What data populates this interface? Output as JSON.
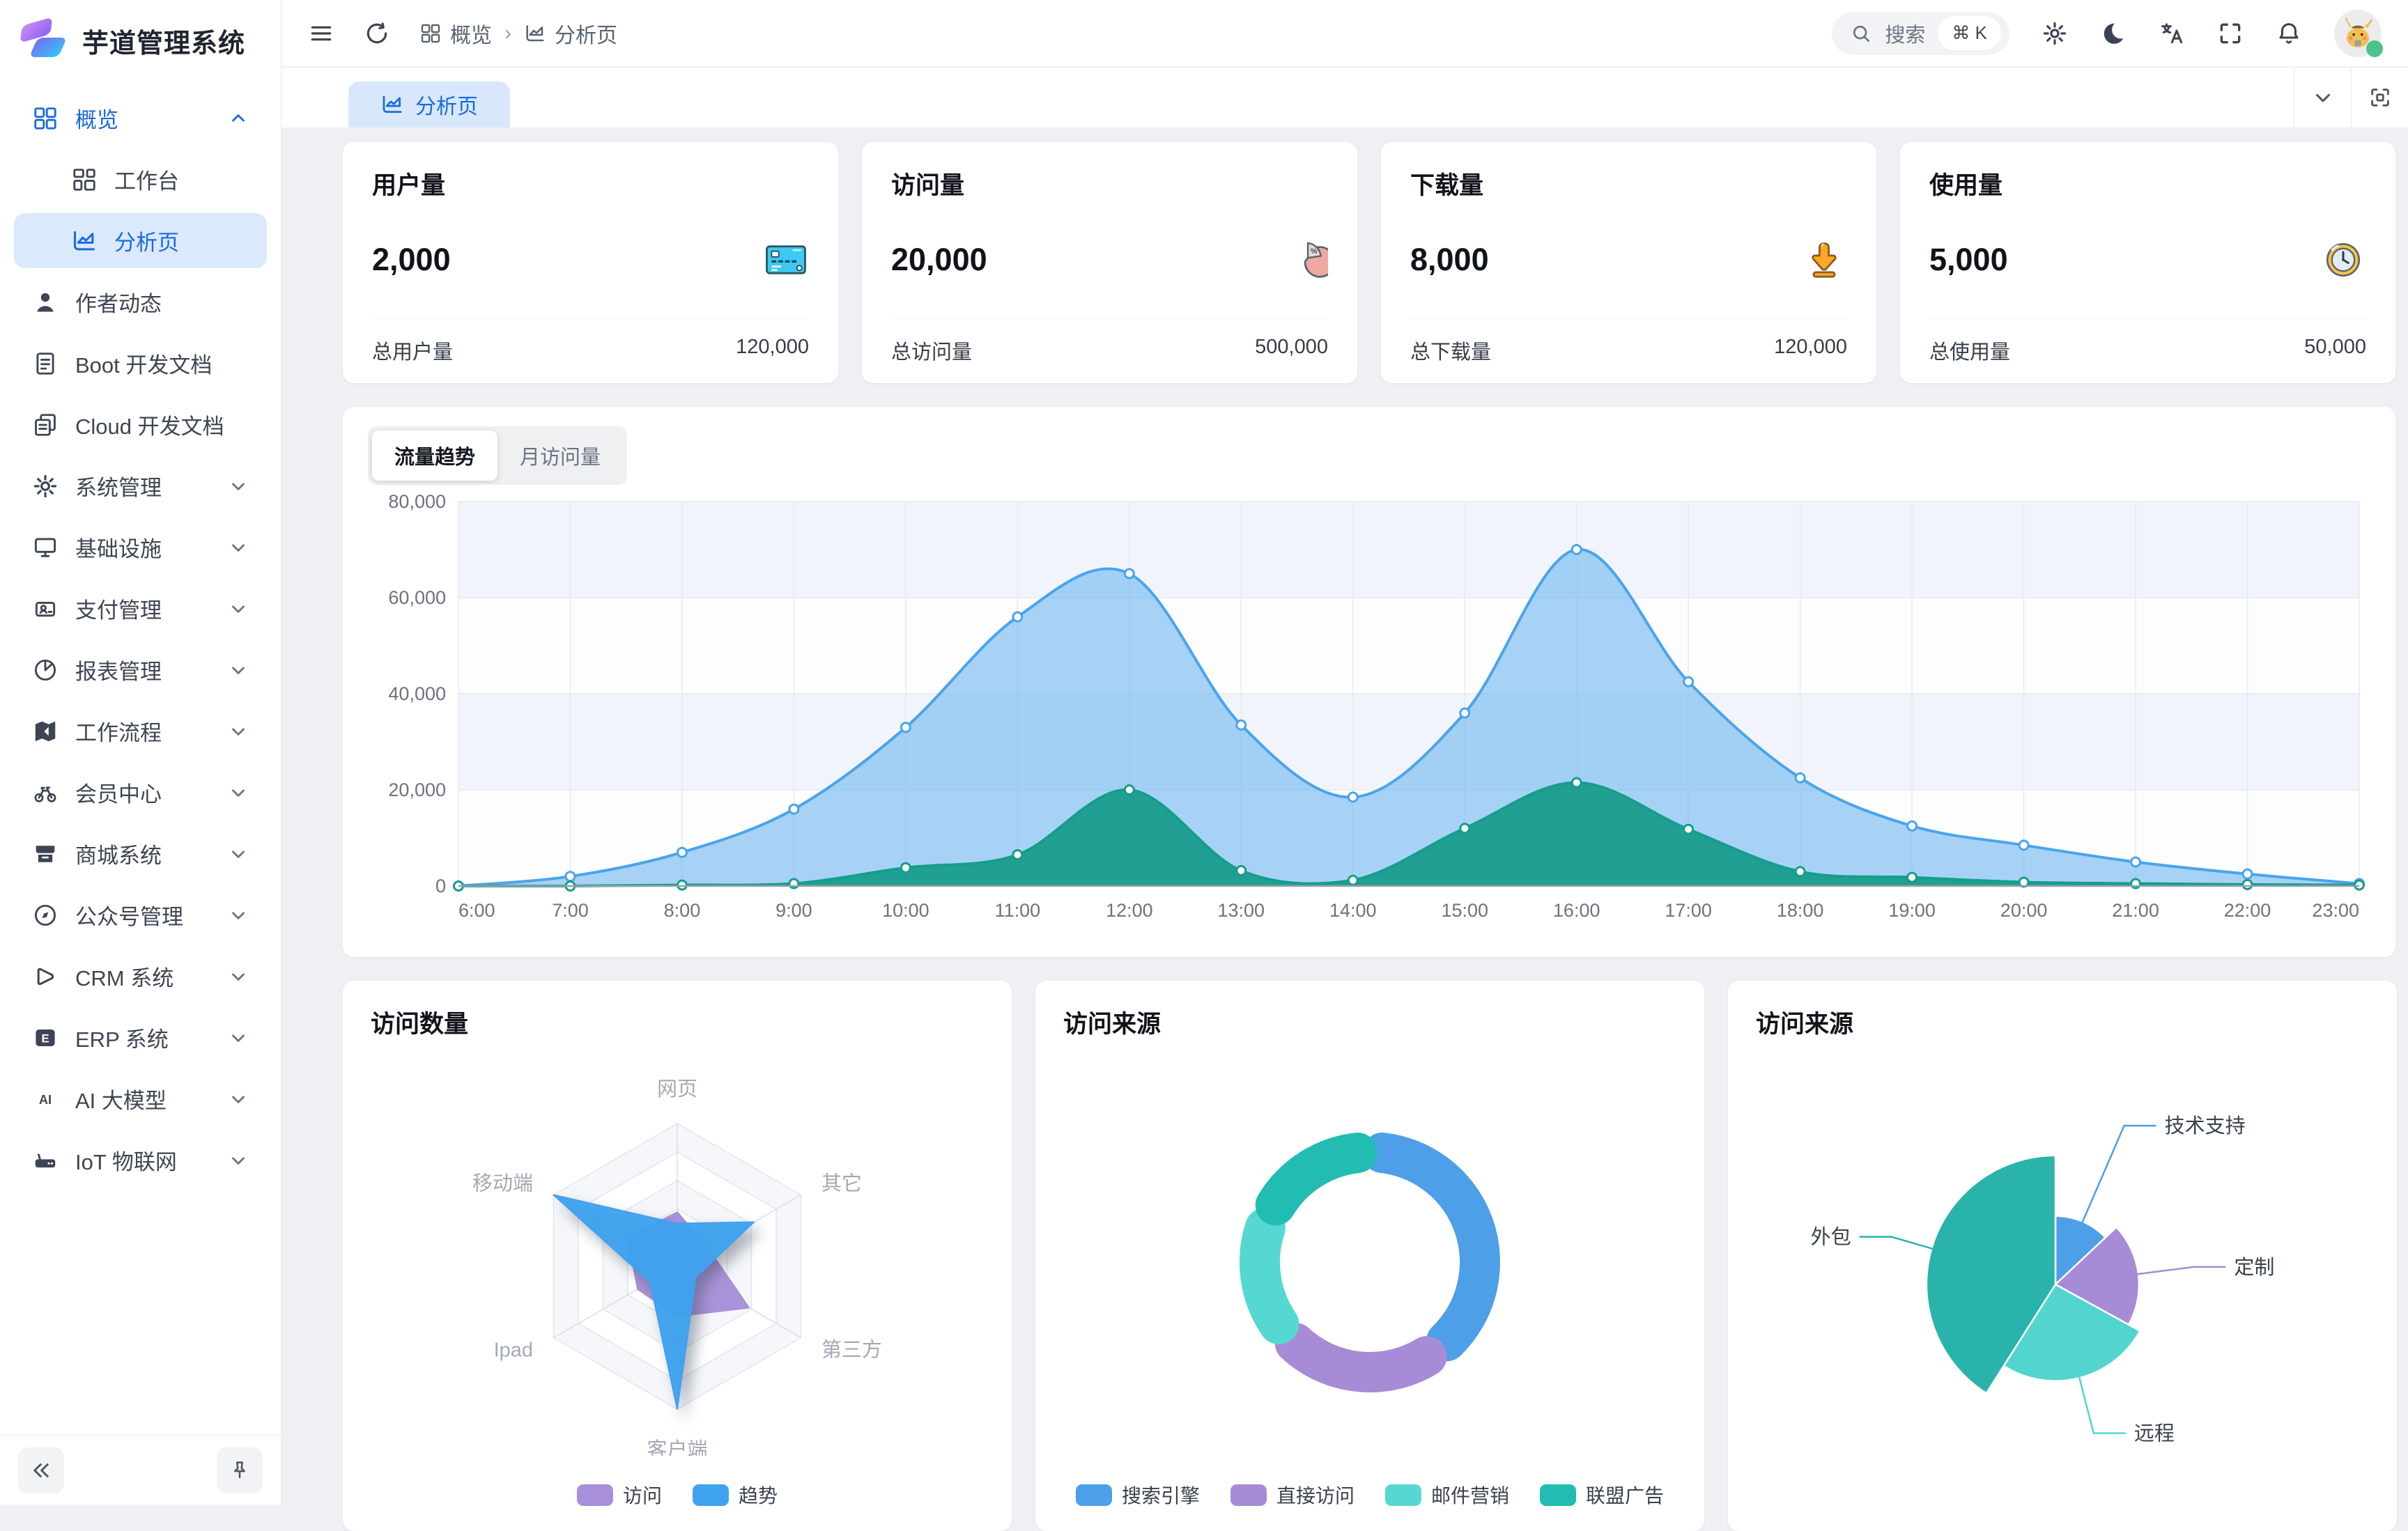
{
  "app": {
    "title": "芋道管理系统"
  },
  "colors": {
    "accent": "#1a6bdb",
    "active_item_bg": "#dbe9fd",
    "trend_blue": "#4aa4ec",
    "trend_blue_fill": "rgba(96,174,238,0.55)",
    "trend_green": "#149e8b",
    "trend_green_fill": "rgba(22,154,137,0.92)",
    "band_tint": "#f1f5fb",
    "grid_line": "#e5eaf3",
    "axis_label": "#6b7280"
  },
  "sidebar": {
    "items": [
      {
        "label": "概览"
      },
      {
        "label": "工作台"
      },
      {
        "label": "分析页"
      },
      {
        "label": "作者动态"
      },
      {
        "label": "Boot 开发文档"
      },
      {
        "label": "Cloud 开发文档"
      },
      {
        "label": "系统管理"
      },
      {
        "label": "基础设施"
      },
      {
        "label": "支付管理"
      },
      {
        "label": "报表管理"
      },
      {
        "label": "工作流程"
      },
      {
        "label": "会员中心"
      },
      {
        "label": "商城系统"
      },
      {
        "label": "公众号管理"
      },
      {
        "label": "CRM 系统"
      },
      {
        "label": "ERP 系统"
      },
      {
        "label": "AI 大模型"
      },
      {
        "label": "IoT 物联网"
      }
    ],
    "footer": {
      "collapse": "«"
    }
  },
  "header": {
    "breadcrumb": [
      {
        "label": "概览"
      },
      {
        "label": "分析页"
      }
    ],
    "search": {
      "placeholder": "搜索",
      "shortcut": "⌘ K"
    }
  },
  "tabbar": {
    "active_tab": "分析页"
  },
  "stats": [
    {
      "title": "用户量",
      "value": "2,000",
      "icon": "bank-card-icon",
      "total_label": "总用户量",
      "total_value": "120,000"
    },
    {
      "title": "访问量",
      "value": "20,000",
      "icon": "pie-percent-icon",
      "total_label": "总访问量",
      "total_value": "500,000"
    },
    {
      "title": "下载量",
      "value": "8,000",
      "icon": "download-icon",
      "total_label": "总下载量",
      "total_value": "120,000"
    },
    {
      "title": "使用量",
      "value": "5,000",
      "icon": "clock-icon",
      "total_label": "总使用量",
      "total_value": "50,000"
    }
  ],
  "traffic": {
    "tabs": [
      {
        "label": "流量趋势"
      },
      {
        "label": "月访问量"
      }
    ],
    "active": 0
  },
  "chart_data": [
    {
      "id": "traffic-trend",
      "type": "area",
      "x": [
        "6:00",
        "7:00",
        "8:00",
        "9:00",
        "10:00",
        "11:00",
        "12:00",
        "13:00",
        "14:00",
        "15:00",
        "16:00",
        "17:00",
        "18:00",
        "19:00",
        "20:00",
        "21:00",
        "22:00",
        "23:00"
      ],
      "series": [
        {
          "name": "trend-blue",
          "color": "#4aa4ec",
          "values": [
            0,
            2000,
            7000,
            16000,
            33000,
            56000,
            65000,
            33500,
            18500,
            36000,
            70000,
            42500,
            22500,
            12500,
            8500,
            5000,
            2500,
            500
          ]
        },
        {
          "name": "trend-green",
          "color": "#149e8b",
          "values": [
            0,
            0,
            200,
            500,
            3800,
            6500,
            20000,
            3200,
            1200,
            12000,
            21500,
            11800,
            3000,
            1800,
            800,
            500,
            300,
            200
          ]
        }
      ],
      "ylim": [
        0,
        80000
      ],
      "ytick_step": 20000,
      "grid": true,
      "legend": "none"
    },
    {
      "id": "visit-count",
      "type": "radar",
      "title": "访问数量",
      "indicators": [
        "网页",
        "其它",
        "第三方",
        "客户端",
        "Ipad",
        "移动端"
      ],
      "max": 100,
      "series": [
        {
          "name": "访问",
          "color": "#a78fd9",
          "values": [
            38,
            25,
            58,
            35,
            32,
            40
          ]
        },
        {
          "name": "趋势",
          "color": "#3ea2ef",
          "values": [
            30,
            62,
            15,
            100,
            22,
            100
          ]
        }
      ],
      "legend_position": "bottom"
    },
    {
      "id": "visit-source-donut",
      "type": "pie",
      "title": "访问来源",
      "slices": [
        {
          "name": "搜索引擎",
          "color": "#4d9fe8",
          "percent": 42
        },
        {
          "name": "直接访问",
          "color": "#a78bd6",
          "percent": 24
        },
        {
          "name": "邮件营销",
          "color": "#55d8d1",
          "percent": 17
        },
        {
          "name": "联盟广告",
          "color": "#22bcb2",
          "percent": 17
        }
      ],
      "legend_position": "bottom"
    },
    {
      "id": "visit-source-rose",
      "type": "pie",
      "title": "访问来源",
      "slices": [
        {
          "name": "技术支持",
          "color": "#4d9fe8",
          "percent": 13
        },
        {
          "name": "定制",
          "color": "#a78bd6",
          "percent": 20
        },
        {
          "name": "远程",
          "color": "#52d5ce",
          "percent": 26
        },
        {
          "name": "外包",
          "color": "#2ab3ab",
          "percent": 41
        }
      ],
      "legend_position": "labels"
    }
  ]
}
